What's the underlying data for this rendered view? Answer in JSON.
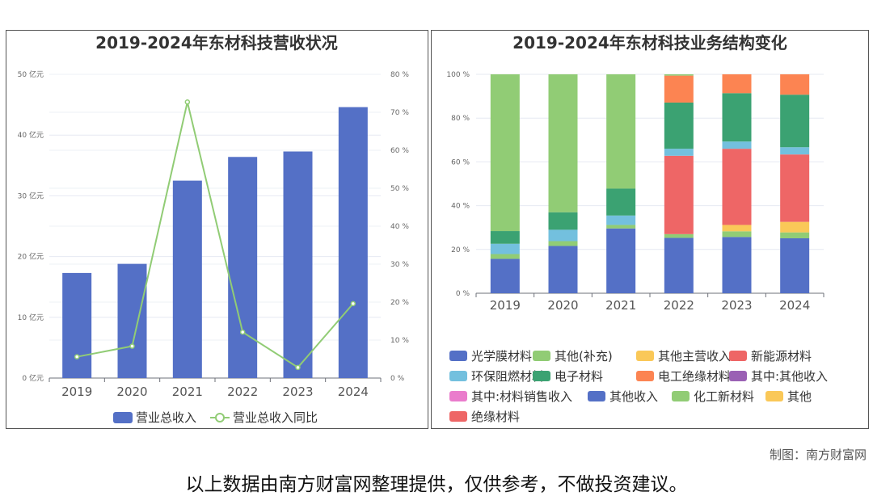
{
  "credit": "制图：南方财富网",
  "disclaimer": "以上数据由南方财富网整理提供，仅供参考，不做投资建议。",
  "chart_data": [
    {
      "type": "bar",
      "title": "2019-2024年东材科技营收状况",
      "categories": [
        "2019",
        "2020",
        "2021",
        "2022",
        "2023",
        "2024"
      ],
      "y_ticks": [
        "0 亿元",
        "10 亿元",
        "20 亿元",
        "30 亿元",
        "40 亿元",
        "50 亿元"
      ],
      "y2_ticks": [
        "0 %",
        "10 %",
        "20 %",
        "30 %",
        "40 %",
        "50 %",
        "60 %",
        "70 %",
        "80 %"
      ],
      "ylim": [
        0,
        50
      ],
      "y2lim": [
        0,
        80
      ],
      "series": [
        {
          "name": "营业总收入",
          "type": "bar",
          "axis": "left",
          "color": "#5470c6",
          "values": [
            17.3,
            18.8,
            32.5,
            36.4,
            37.3,
            44.6
          ]
        },
        {
          "name": "营业总收入同比",
          "type": "line",
          "axis": "right",
          "color": "#91cc75",
          "values": [
            5.6,
            8.4,
            72.7,
            12.1,
            2.8,
            19.6
          ]
        }
      ],
      "legend": "bottom",
      "grid": true
    },
    {
      "type": "bar",
      "stacked": true,
      "title": "2019-2024年东材科技业务结构变化",
      "categories": [
        "2019",
        "2020",
        "2021",
        "2022",
        "2023",
        "2024"
      ],
      "y_ticks": [
        "0 %",
        "20 %",
        "40 %",
        "60 %",
        "80 %",
        "100 %"
      ],
      "ylim": [
        0,
        100
      ],
      "series": [
        {
          "name": "光学膜材料",
          "color": "#5470c6",
          "values": [
            15.7,
            21.6,
            29.6,
            25.3,
            25.7,
            25.1
          ]
        },
        {
          "name": "其他(补充)",
          "color": "#91cc75",
          "values": [
            2.2,
            2.2,
            1.6,
            1.7,
            2.6,
            2.7
          ]
        },
        {
          "name": "其他主营收入",
          "color": "#fac858",
          "values": [
            0,
            0,
            0,
            0,
            2.9,
            4.8
          ]
        },
        {
          "name": "新能源材料",
          "color": "#ee6666",
          "values": [
            0,
            0,
            0,
            35.8,
            34.8,
            30.8
          ]
        },
        {
          "name": "环保阻燃材料",
          "color": "#73c0de",
          "values": [
            4.7,
            5.2,
            4.3,
            3.2,
            3.3,
            3.3
          ]
        },
        {
          "name": "电子材料",
          "color": "#3ba272",
          "values": [
            5.8,
            8.0,
            12.3,
            21.1,
            22.1,
            24.0
          ]
        },
        {
          "name": "电工绝缘材料",
          "color": "#fc8452",
          "values": [
            0,
            0,
            0,
            12.3,
            8.6,
            9.3
          ]
        },
        {
          "name": "其中:其他收入",
          "color": "#9a60b4",
          "values": [
            0,
            0,
            0,
            0,
            0,
            0
          ]
        },
        {
          "name": "其中:材料销售收入",
          "color": "#ea7ccc",
          "values": [
            0,
            0,
            0,
            0,
            0,
            0
          ]
        },
        {
          "name": "其他收入",
          "color": "#5470c6",
          "values": [
            0,
            0,
            0,
            0,
            0,
            0
          ]
        },
        {
          "name": "化工新材料",
          "color": "#91cc75",
          "values": [
            71.6,
            63.0,
            52.2,
            0.6,
            0,
            0
          ]
        },
        {
          "name": "其他",
          "color": "#fac858",
          "values": [
            0,
            0,
            0,
            0,
            0,
            0
          ]
        },
        {
          "name": "绝缘材料",
          "color": "#ee6666",
          "values": [
            0,
            0,
            0,
            0,
            0,
            0
          ]
        }
      ],
      "legend": "bottom",
      "grid": true
    }
  ]
}
